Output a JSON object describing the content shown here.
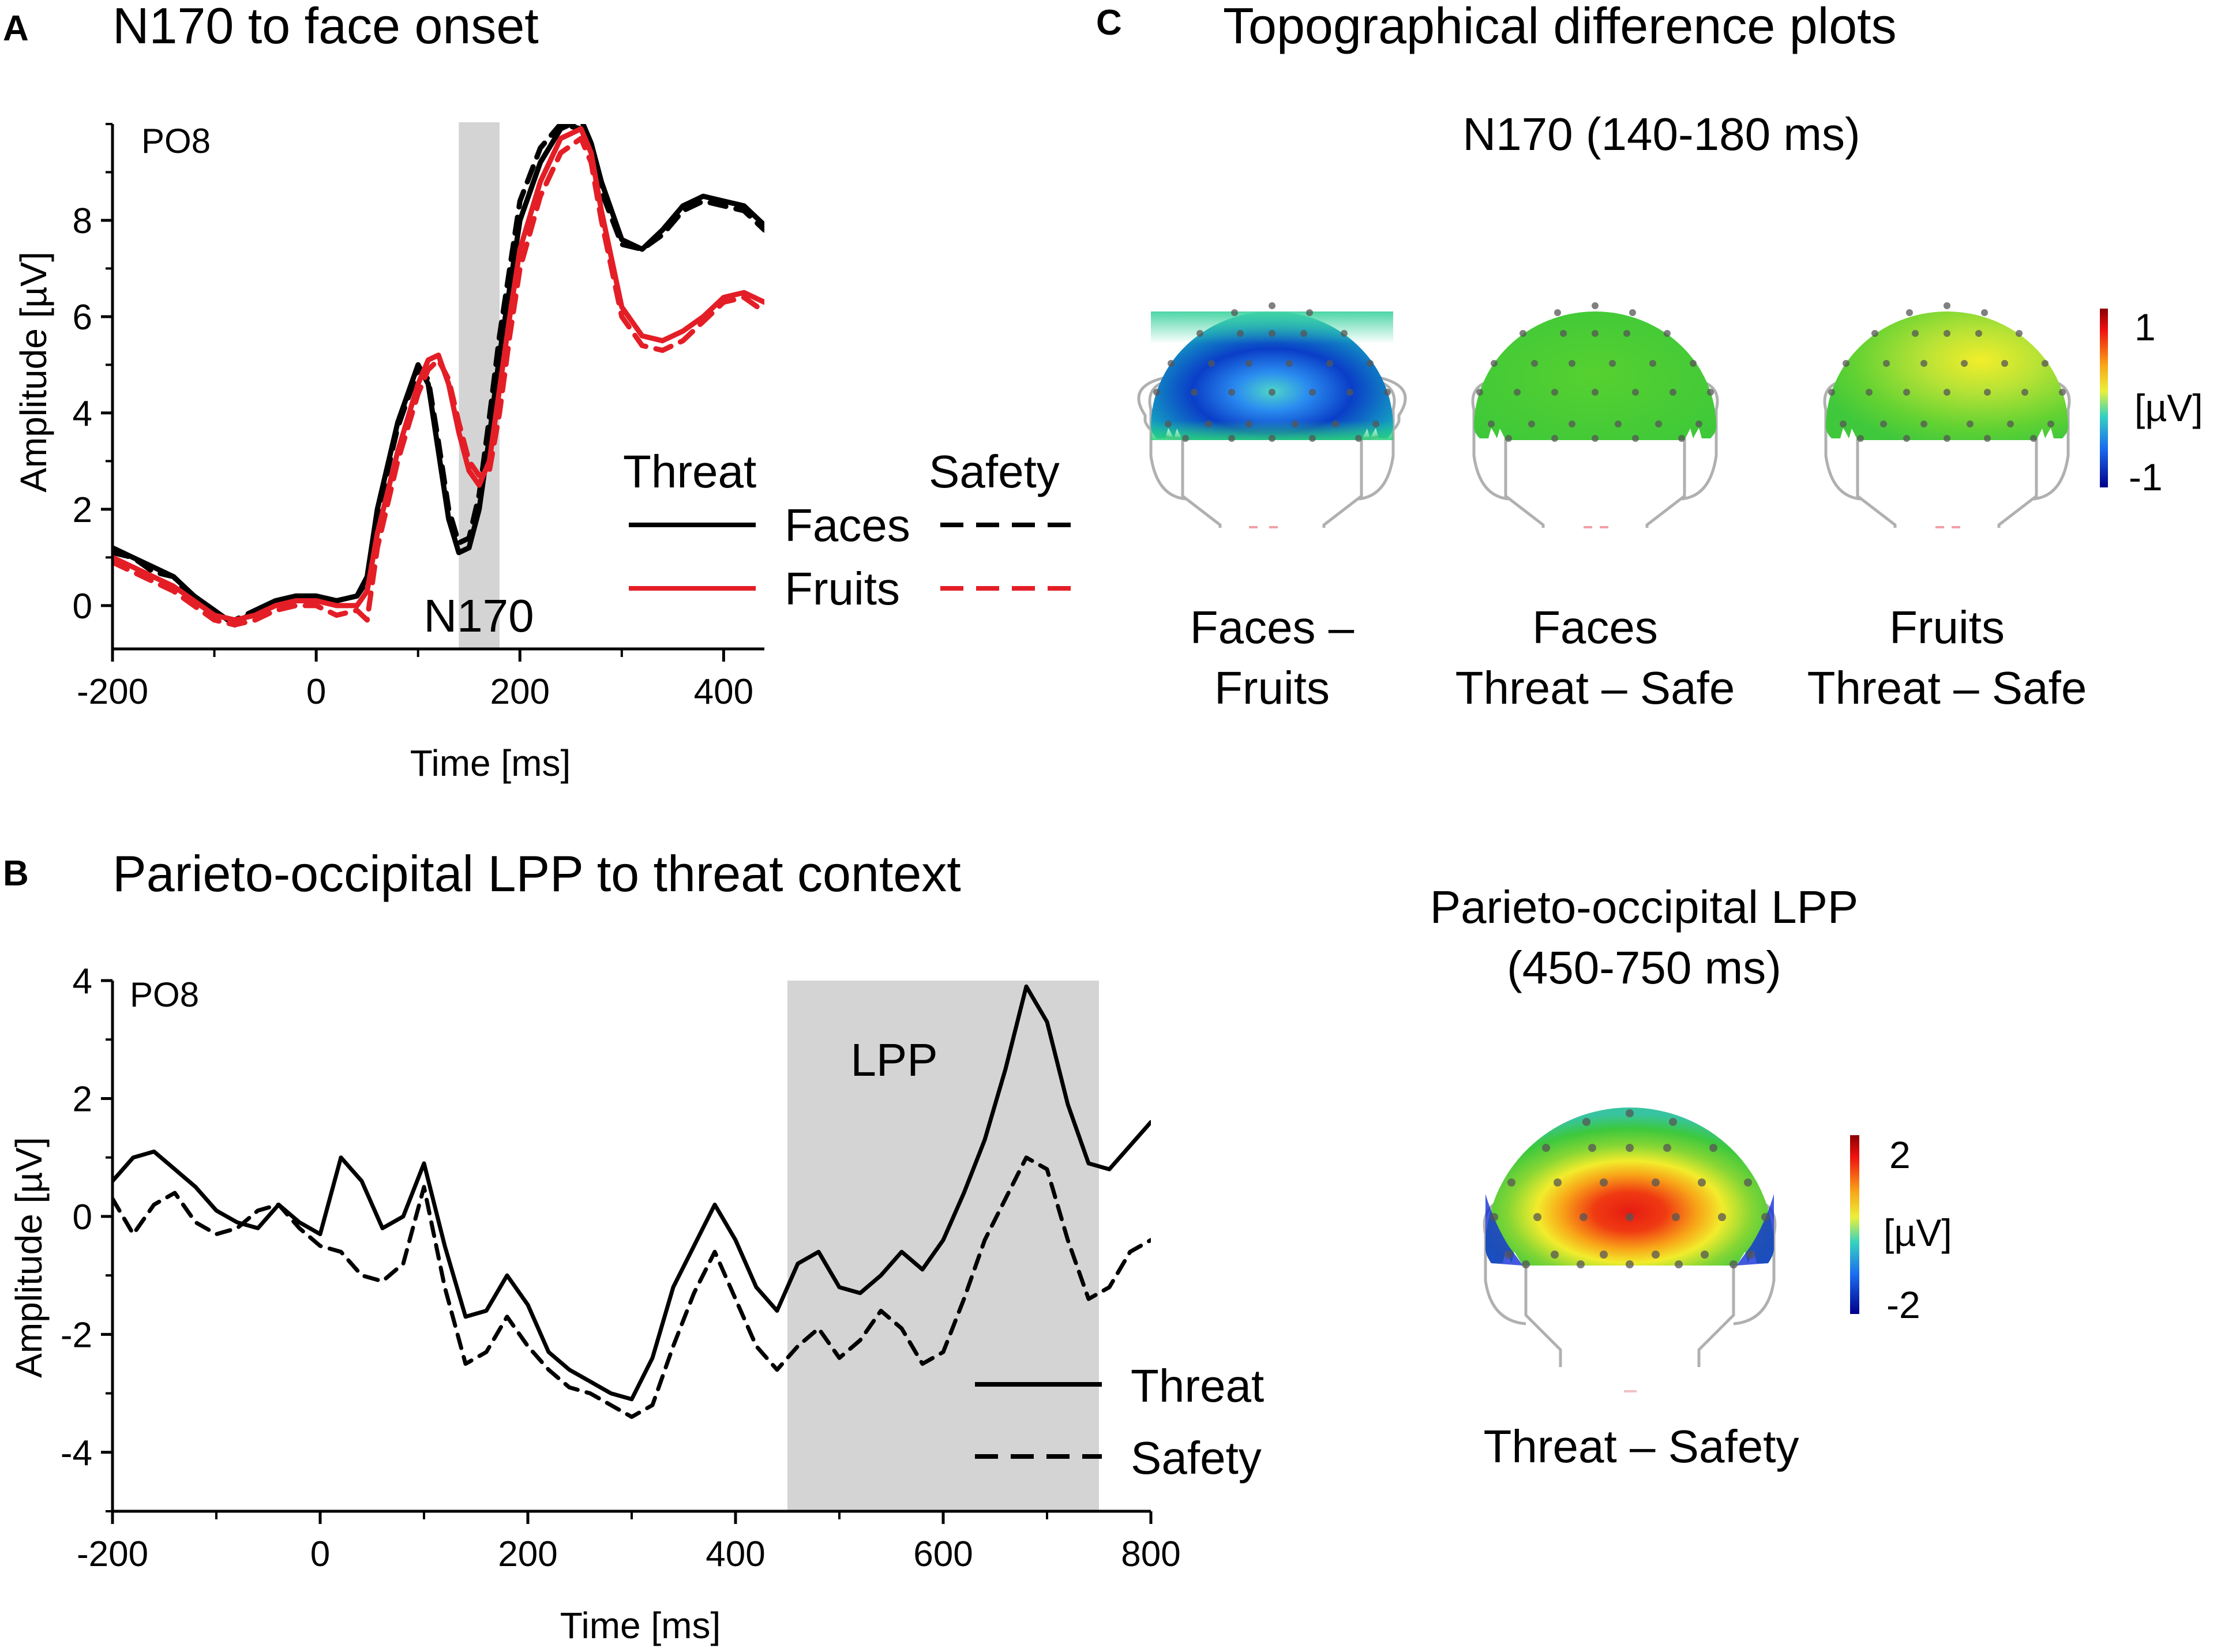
{
  "figure": {
    "colors": {
      "threat": "#000000",
      "fruits": "#e41e26",
      "shade": "#d4d4d4"
    }
  },
  "chart_data": [
    {
      "panel": "A",
      "type": "line",
      "title": "N170 to face onset",
      "electrode": "PO8",
      "xlabel": "Time [ms]",
      "ylabel": "Amplitude [µV]",
      "xlim": [
        -200,
        440
      ],
      "ylim": [
        -0.9,
        10
      ],
      "xticks": [
        -200,
        0,
        200,
        400
      ],
      "yticks": [
        0,
        2,
        4,
        6,
        8
      ],
      "shaded_window": {
        "x0": 140,
        "x1": 180,
        "label": "N170"
      },
      "legend": {
        "col_threat": "Threat",
        "col_safety": "Safety",
        "row_faces": "Faces",
        "row_fruits": "Fruits"
      },
      "x": [
        -200,
        -180,
        -160,
        -140,
        -120,
        -100,
        -80,
        -60,
        -40,
        -20,
        0,
        20,
        40,
        50,
        60,
        80,
        100,
        110,
        120,
        130,
        140,
        150,
        160,
        170,
        180,
        190,
        200,
        220,
        240,
        260,
        270,
        280,
        300,
        320,
        340,
        360,
        380,
        400,
        420,
        440
      ],
      "series": [
        {
          "name": "Faces Threat",
          "style": "solid",
          "color": "#000000",
          "values": [
            1.2,
            1.0,
            0.8,
            0.6,
            0.2,
            -0.1,
            -0.4,
            -0.1,
            0.1,
            0.2,
            0.2,
            0.1,
            0.2,
            0.6,
            2.0,
            3.8,
            5.0,
            4.6,
            3.2,
            1.8,
            1.1,
            1.2,
            2.0,
            3.5,
            5.2,
            6.6,
            8.0,
            9.2,
            9.9,
            10.1,
            9.6,
            8.8,
            7.6,
            7.4,
            7.8,
            8.3,
            8.5,
            8.4,
            8.3,
            7.9
          ]
        },
        {
          "name": "Faces Safety",
          "style": "dashed",
          "color": "#000000",
          "values": [
            1.1,
            1.0,
            0.7,
            0.6,
            0.1,
            -0.2,
            -0.3,
            -0.1,
            0.0,
            0.1,
            0.2,
            0.1,
            0.2,
            0.5,
            1.9,
            3.7,
            4.9,
            4.7,
            3.4,
            2.0,
            1.3,
            1.4,
            2.3,
            3.9,
            5.6,
            7.0,
            8.4,
            9.5,
            10.0,
            9.9,
            9.4,
            8.6,
            7.5,
            7.4,
            7.7,
            8.2,
            8.4,
            8.3,
            8.2,
            7.8
          ]
        },
        {
          "name": "Fruits Threat",
          "style": "solid",
          "color": "#e41e26",
          "values": [
            1.0,
            0.8,
            0.6,
            0.4,
            0.1,
            -0.2,
            -0.3,
            -0.2,
            0.0,
            0.1,
            0.1,
            0.0,
            0.0,
            0.3,
            1.5,
            3.2,
            4.6,
            5.1,
            5.2,
            4.6,
            3.6,
            2.8,
            2.5,
            3.0,
            4.5,
            6.0,
            7.4,
            8.8,
            9.7,
            9.9,
            9.4,
            8.2,
            6.2,
            5.6,
            5.5,
            5.7,
            6.0,
            6.4,
            6.5,
            6.3
          ]
        },
        {
          "name": "Fruits Safety",
          "style": "dashed",
          "color": "#e41e26",
          "values": [
            0.9,
            0.7,
            0.5,
            0.3,
            0.0,
            -0.3,
            -0.4,
            -0.3,
            -0.1,
            0.0,
            0.0,
            -0.2,
            -0.1,
            -0.3,
            1.2,
            3.0,
            4.4,
            4.9,
            5.1,
            4.7,
            3.8,
            3.0,
            2.7,
            2.8,
            4.0,
            5.6,
            7.0,
            8.5,
            9.4,
            9.7,
            9.2,
            8.0,
            6.0,
            5.4,
            5.3,
            5.5,
            5.9,
            6.3,
            6.4,
            6.1
          ]
        }
      ]
    },
    {
      "panel": "B",
      "type": "line",
      "title": "Parieto-occipital LPP to threat context",
      "electrode": "PO8",
      "xlabel": "Time [ms]",
      "ylabel": "Amplitude [µV]",
      "xlim": [
        -200,
        800
      ],
      "ylim": [
        -5,
        4
      ],
      "xticks": [
        -200,
        0,
        200,
        400,
        600,
        800
      ],
      "yticks": [
        -4,
        -2,
        0,
        2,
        4
      ],
      "shaded_window": {
        "x0": 450,
        "x1": 750,
        "label": "LPP"
      },
      "legend": {
        "threat": "Threat",
        "safety": "Safety"
      },
      "x": [
        -200,
        -180,
        -160,
        -140,
        -120,
        -100,
        -80,
        -60,
        -40,
        -20,
        0,
        20,
        40,
        60,
        80,
        100,
        120,
        140,
        160,
        180,
        200,
        220,
        240,
        260,
        280,
        300,
        320,
        340,
        360,
        380,
        400,
        420,
        440,
        460,
        480,
        500,
        520,
        540,
        560,
        580,
        600,
        620,
        640,
        660,
        680,
        700,
        720,
        740,
        760,
        780,
        800
      ],
      "series": [
        {
          "name": "Threat",
          "style": "solid",
          "color": "#000000",
          "values": [
            0.6,
            1.0,
            1.1,
            0.8,
            0.5,
            0.1,
            -0.1,
            -0.2,
            0.2,
            -0.1,
            -0.3,
            1.0,
            0.6,
            -0.2,
            0.0,
            0.9,
            -0.5,
            -1.7,
            -1.6,
            -1.0,
            -1.5,
            -2.3,
            -2.6,
            -2.8,
            -3.0,
            -3.1,
            -2.4,
            -1.2,
            -0.5,
            0.2,
            -0.4,
            -1.2,
            -1.6,
            -0.8,
            -0.6,
            -1.2,
            -1.3,
            -1.0,
            -0.6,
            -0.9,
            -0.4,
            0.4,
            1.3,
            2.5,
            3.9,
            3.3,
            1.9,
            0.9,
            0.8,
            1.2,
            1.6
          ]
        },
        {
          "name": "Safety",
          "style": "dashed",
          "color": "#000000",
          "values": [
            0.3,
            -0.3,
            0.2,
            0.4,
            -0.1,
            -0.3,
            -0.2,
            0.1,
            0.2,
            -0.2,
            -0.5,
            -0.6,
            -1.0,
            -1.1,
            -0.8,
            0.5,
            -1.2,
            -2.5,
            -2.3,
            -1.7,
            -2.2,
            -2.6,
            -2.9,
            -3.0,
            -3.2,
            -3.4,
            -3.2,
            -2.2,
            -1.3,
            -0.6,
            -1.4,
            -2.2,
            -2.6,
            -2.2,
            -1.9,
            -2.4,
            -2.1,
            -1.6,
            -1.9,
            -2.5,
            -2.3,
            -1.4,
            -0.4,
            0.3,
            1.0,
            0.8,
            -0.4,
            -1.4,
            -1.2,
            -0.6,
            -0.4
          ]
        }
      ]
    }
  ],
  "panel_c": {
    "letter": "C",
    "title": "Topographical difference plots",
    "n170": {
      "title": "N170 (140-180 ms)",
      "maps": [
        {
          "caption_line1": "Faces –",
          "caption_line2": "Fruits",
          "diff_min": -1.1,
          "diff_max": 0.0
        },
        {
          "caption_line1": "Faces",
          "caption_line2": "Threat  – Safe",
          "diff_min": 0.0,
          "diff_max": 0.1
        },
        {
          "caption_line1": "Fruits",
          "caption_line2": "Threat  – Safe",
          "diff_min": 0.0,
          "diff_max": 0.3
        }
      ],
      "colorbar": {
        "max_label": "1",
        "unit_label": "[µV]",
        "min_label": "-1"
      }
    },
    "lpp": {
      "title_line1": "Parieto-occipital LPP",
      "title_line2": "(450-750 ms)",
      "caption": "Threat  – Safety",
      "diff_min": -1.8,
      "diff_max": 1.8,
      "colorbar": {
        "max_label": "2",
        "unit_label": "[µV]",
        "min_label": "-2"
      }
    }
  },
  "panel_a_letter": "A",
  "panel_b_letter": "B"
}
